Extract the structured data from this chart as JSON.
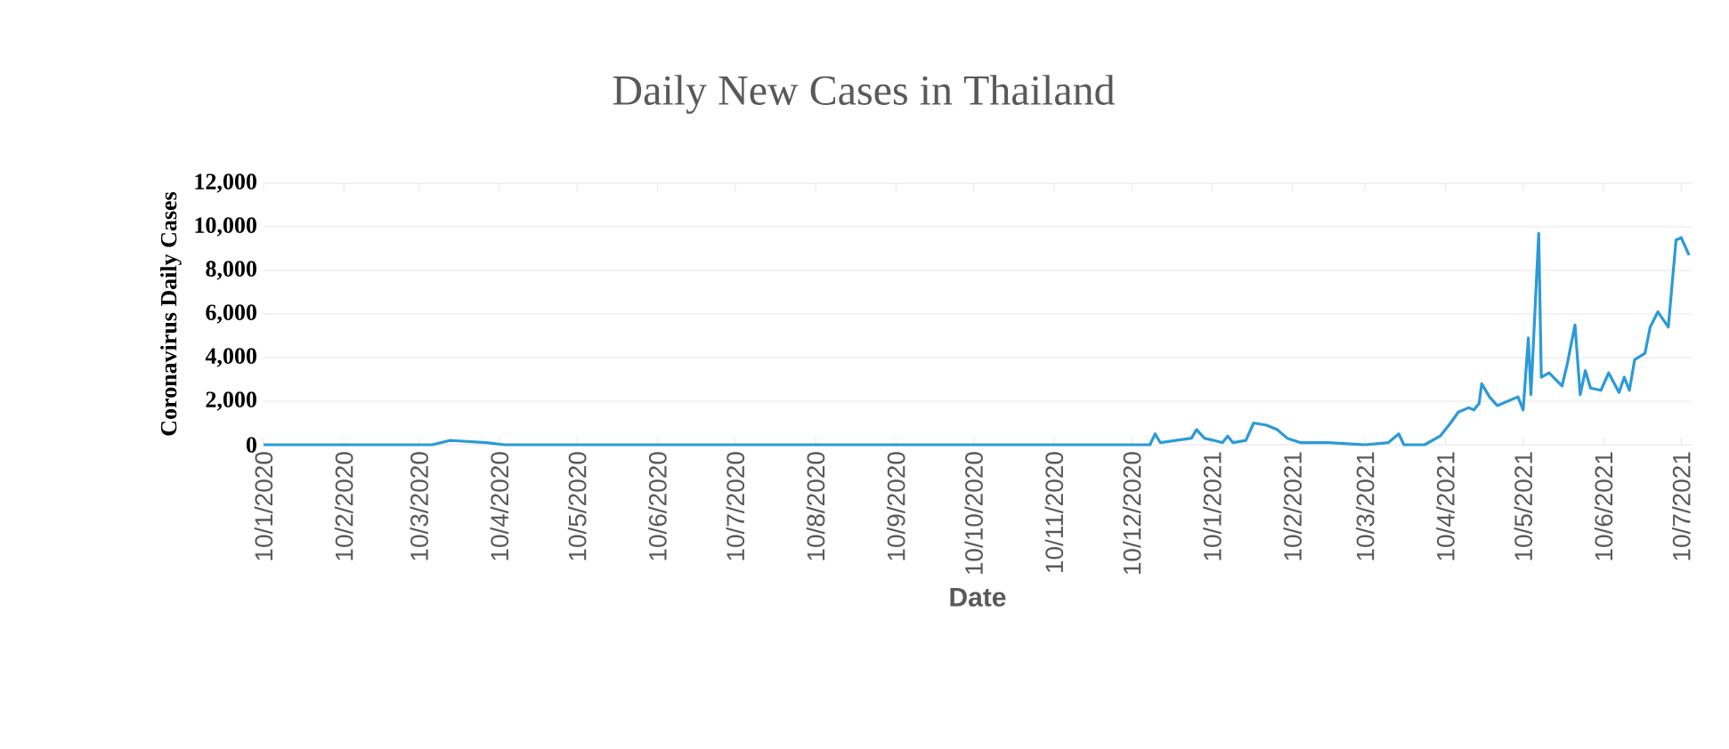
{
  "chart_data": {
    "type": "line",
    "title": "Daily New Cases in Thailand",
    "xlabel": "Date",
    "ylabel": "Coronavirus Daily Cases",
    "x": [
      "2020-01-10",
      "2020-03-15",
      "2020-03-22",
      "2020-04-05",
      "2020-04-12",
      "2020-12-17",
      "2020-12-19",
      "2020-12-21",
      "2021-01-02",
      "2021-01-04",
      "2021-01-07",
      "2021-01-14",
      "2021-01-16",
      "2021-01-18",
      "2021-01-23",
      "2021-01-26",
      "2021-01-31",
      "2021-02-04",
      "2021-02-08",
      "2021-02-13",
      "2021-02-24",
      "2021-03-10",
      "2021-03-19",
      "2021-03-23",
      "2021-03-25",
      "2021-04-02",
      "2021-04-08",
      "2021-04-12",
      "2021-04-15",
      "2021-04-19",
      "2021-04-21",
      "2021-04-23",
      "2021-04-24",
      "2021-04-27",
      "2021-04-30",
      "2021-05-04",
      "2021-05-08",
      "2021-05-10",
      "2021-05-12",
      "2021-05-13",
      "2021-05-16",
      "2021-05-17",
      "2021-05-20",
      "2021-05-25",
      "2021-05-27",
      "2021-05-30",
      "2021-06-01",
      "2021-06-03",
      "2021-06-05",
      "2021-06-09",
      "2021-06-12",
      "2021-06-16",
      "2021-06-18",
      "2021-06-20",
      "2021-06-22",
      "2021-06-26",
      "2021-06-28",
      "2021-07-01",
      "2021-07-05",
      "2021-07-08",
      "2021-07-10",
      "2021-07-13"
    ],
    "series": [
      {
        "color": "#2b9ad8",
        "values": [
          0,
          0,
          200,
          100,
          0,
          0,
          500,
          100,
          300,
          700,
          300,
          100,
          400,
          100,
          200,
          1000,
          900,
          700,
          300,
          100,
          100,
          0,
          100,
          500,
          0,
          0,
          400,
          1000,
          1500,
          1700,
          1600,
          1900,
          2800,
          2200,
          1800,
          2000,
          2200,
          1600,
          4900,
          2300,
          9700,
          3100,
          3300,
          2700,
          3700,
          5500,
          2300,
          3400,
          2600,
          2500,
          3300,
          2400,
          3100,
          2500,
          3900,
          4200,
          5400,
          6100,
          5400,
          9400,
          9500,
          8700
        ]
      }
    ],
    "xlim": [
      "2020-01-10",
      "2021-07-14"
    ],
    "xticks": [
      {
        "value": "2020-01-10",
        "label": "10/1/2020"
      },
      {
        "value": "2020-02-10",
        "label": "10/2/2020"
      },
      {
        "value": "2020-03-10",
        "label": "10/3/2020"
      },
      {
        "value": "2020-04-10",
        "label": "10/4/2020"
      },
      {
        "value": "2020-05-10",
        "label": "10/5/2020"
      },
      {
        "value": "2020-06-10",
        "label": "10/6/2020"
      },
      {
        "value": "2020-07-10",
        "label": "10/7/2020"
      },
      {
        "value": "2020-08-10",
        "label": "10/8/2020"
      },
      {
        "value": "2020-09-10",
        "label": "10/9/2020"
      },
      {
        "value": "2020-10-10",
        "label": "10/10/2020"
      },
      {
        "value": "2020-11-10",
        "label": "10/11/2020"
      },
      {
        "value": "2020-12-10",
        "label": "10/12/2020"
      },
      {
        "value": "2021-01-10",
        "label": "10/1/2021"
      },
      {
        "value": "2021-02-10",
        "label": "10/2/2021"
      },
      {
        "value": "2021-03-10",
        "label": "10/3/2021"
      },
      {
        "value": "2021-04-10",
        "label": "10/4/2021"
      },
      {
        "value": "2021-05-10",
        "label": "10/5/2021"
      },
      {
        "value": "2021-06-10",
        "label": "10/6/2021"
      },
      {
        "value": "2021-07-10",
        "label": "10/7/2021"
      }
    ],
    "ylim": [
      0,
      12000
    ],
    "yticks": [
      {
        "value": 0,
        "label": "0"
      },
      {
        "value": 2000,
        "label": "2,000"
      },
      {
        "value": 4000,
        "label": "4,000"
      },
      {
        "value": 6000,
        "label": "6,000"
      },
      {
        "value": 8000,
        "label": "8,000"
      },
      {
        "value": 10000,
        "label": "10,000"
      },
      {
        "value": 12000,
        "label": "12,000"
      }
    ],
    "grid": "y",
    "marker": "none",
    "line_style": "solid"
  }
}
